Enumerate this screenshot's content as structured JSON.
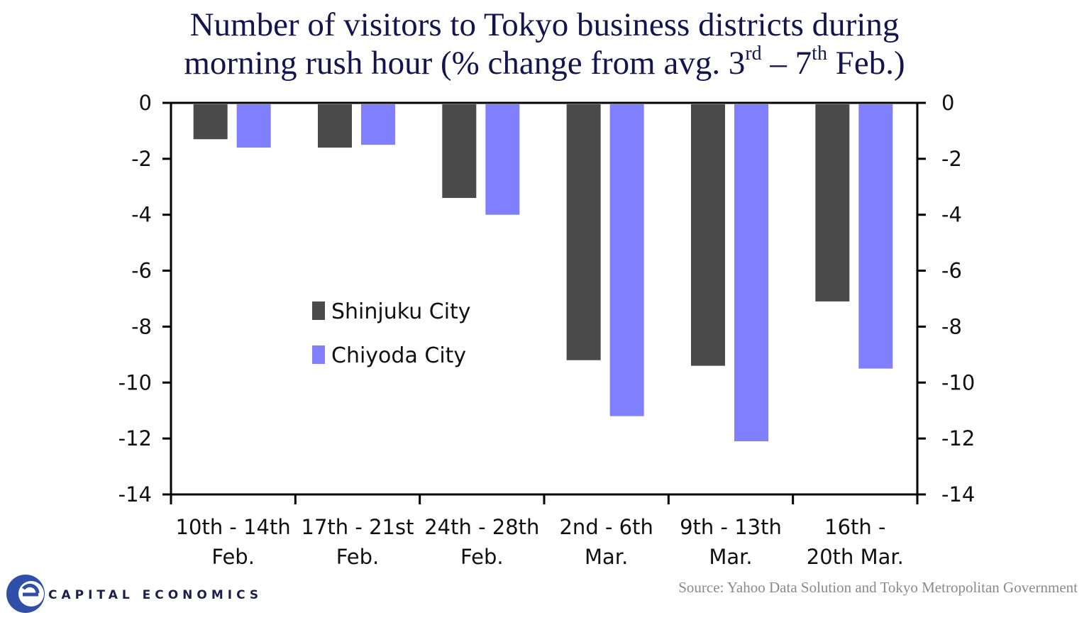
{
  "title": {
    "line1": "Number of visitors to Tokyo business districts during",
    "line2_a": "morning rush hour (% change from avg. 3",
    "line2_sup1": "rd",
    "line2_b": " – 7",
    "line2_sup2": "th",
    "line2_c": " Feb.)"
  },
  "source": "Source: Yahoo Data Solution and Tokyo Metropolitan Government",
  "logo": {
    "text": "CAPITAL ECONOMICS",
    "icon": "capital-economics-logo-icon"
  },
  "colors": {
    "shinjuku": "#4a4a4a",
    "chiyoda": "#8080ff",
    "title": "#14144f",
    "axis": "#000000"
  },
  "chart_data": {
    "type": "bar",
    "categories": [
      [
        "10th - 14th",
        "Feb."
      ],
      [
        "17th - 21st",
        "Feb."
      ],
      [
        "24th - 28th",
        "Feb."
      ],
      [
        "2nd - 6th",
        "Mar."
      ],
      [
        "9th - 13th",
        "Mar."
      ],
      [
        "16th -",
        "20th Mar."
      ]
    ],
    "series": [
      {
        "name": "Shinjuku City",
        "values": [
          -1.3,
          -1.6,
          -3.4,
          -9.2,
          -9.4,
          -7.1
        ]
      },
      {
        "name": "Chiyoda City",
        "values": [
          -1.6,
          -1.5,
          -4.0,
          -11.2,
          -12.1,
          -9.5
        ]
      }
    ],
    "ylim": [
      -14,
      0
    ],
    "yticks": [
      0,
      -2,
      -4,
      -6,
      -8,
      -10,
      -12,
      -14
    ],
    "ytick_labels": [
      "0",
      "-2",
      "-4",
      "-6",
      "-8",
      "-10",
      "-12",
      "-14"
    ],
    "axes": "left and right, identical",
    "grid": false,
    "legend": "center-left"
  }
}
